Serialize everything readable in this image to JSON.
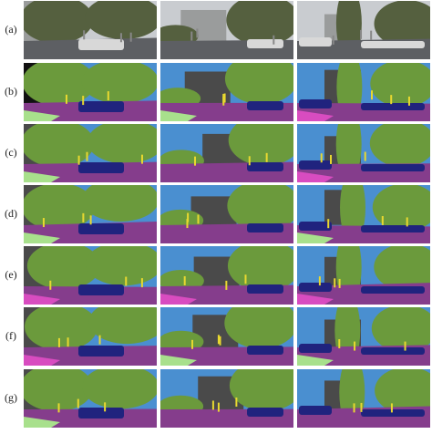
{
  "figure": {
    "row_labels": [
      "(a)",
      "(b)",
      "(c)",
      "(d)",
      "(e)",
      "(f)",
      "(g)"
    ]
  }
}
